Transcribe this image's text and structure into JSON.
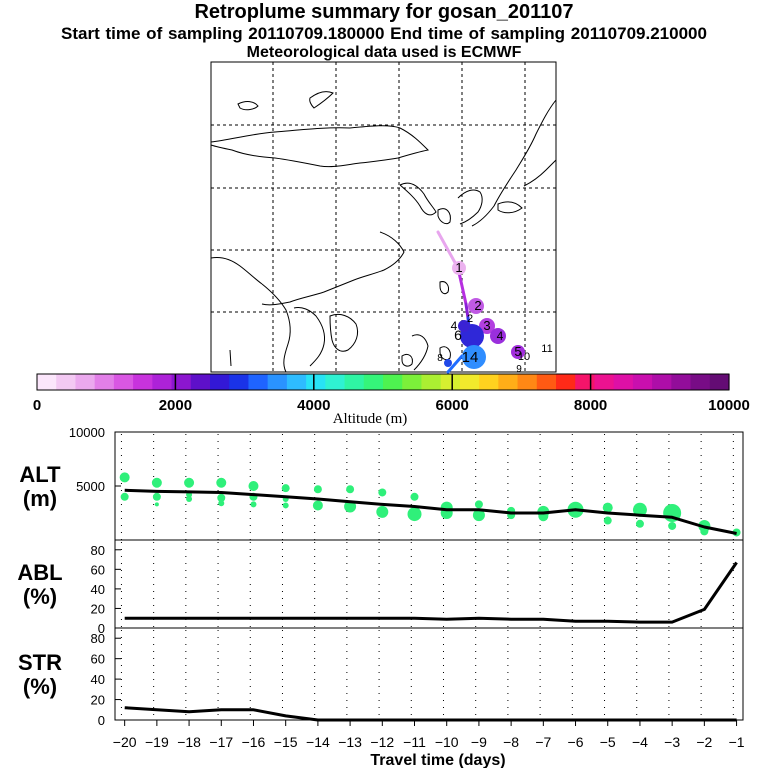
{
  "header": {
    "title": "Retroplume summary for gosan_201107",
    "sampling_line": "Start time of sampling 20110709.180000      End time of sampling 20110709.210000",
    "met_line": "Meteorological data used is ECMWF"
  },
  "map": {
    "trajectory_labels": [
      "1",
      "2",
      "2",
      "3",
      "4",
      "4",
      "5",
      "6",
      "8",
      "9",
      "10",
      "11",
      "14"
    ]
  },
  "colorbar": {
    "tick_labels": [
      "0",
      "2000",
      "4000",
      "6000",
      "8000",
      "10000"
    ],
    "title": "Altitude  (m)",
    "colors": [
      "#fbe6fb",
      "#f3c9f3",
      "#eba9ee",
      "#e27fe8",
      "#d957e3",
      "#c833dd",
      "#ad22d8",
      "#8c16cf",
      "#5e10c9",
      "#3318d6",
      "#1a33e8",
      "#1f64ff",
      "#2a93ff",
      "#2ebcff",
      "#28e3f5",
      "#2ff2d2",
      "#2ff5a4",
      "#35f57a",
      "#4ef350",
      "#7cf03a",
      "#abef32",
      "#d6ef30",
      "#f2ea2c",
      "#ffd21f",
      "#ffae18",
      "#ff8815",
      "#ff5a13",
      "#ff2a18",
      "#f5146a",
      "#ec1290",
      "#de10a6",
      "#c90fae",
      "#ae0ea8",
      "#920d9a",
      "#780c86",
      "#640c74"
    ]
  },
  "chart_data": [
    {
      "type": "line",
      "name": "ALT",
      "ylabel": "ALT\n(m)",
      "x": [
        -20,
        -19,
        -18,
        -17,
        -16,
        -15,
        -14,
        -13,
        -12,
        -11,
        -10,
        -9,
        -8,
        -7,
        -6,
        -5,
        -4,
        -3,
        -2,
        -1
      ],
      "values": [
        4600,
        4500,
        4450,
        4400,
        4200,
        4000,
        3800,
        3550,
        3300,
        3100,
        2800,
        2800,
        2500,
        2500,
        2800,
        2500,
        2300,
        2100,
        1200,
        600
      ],
      "ylim": [
        0,
        10000
      ],
      "yticks": [
        "5000",
        "10000"
      ],
      "scatter": [
        {
          "x": -19.9,
          "y": 5800,
          "s": 5
        },
        {
          "x": -19.9,
          "y": 4000,
          "s": 4
        },
        {
          "x": -18.9,
          "y": 5300,
          "s": 5
        },
        {
          "x": -18.9,
          "y": 4000,
          "s": 4
        },
        {
          "x": -18.9,
          "y": 3300,
          "s": 2
        },
        {
          "x": -17.9,
          "y": 5300,
          "s": 5
        },
        {
          "x": -17.9,
          "y": 4200,
          "s": 3
        },
        {
          "x": -17.9,
          "y": 3800,
          "s": 3
        },
        {
          "x": -16.9,
          "y": 5300,
          "s": 5
        },
        {
          "x": -16.9,
          "y": 3900,
          "s": 4
        },
        {
          "x": -16.9,
          "y": 3400,
          "s": 3
        },
        {
          "x": -15.9,
          "y": 5000,
          "s": 5
        },
        {
          "x": -15.9,
          "y": 4000,
          "s": 4
        },
        {
          "x": -15.9,
          "y": 3300,
          "s": 3
        },
        {
          "x": -14.9,
          "y": 4800,
          "s": 4
        },
        {
          "x": -14.9,
          "y": 3800,
          "s": 3
        },
        {
          "x": -14.9,
          "y": 3200,
          "s": 3
        },
        {
          "x": -13.9,
          "y": 4700,
          "s": 4
        },
        {
          "x": -13.9,
          "y": 3200,
          "s": 5
        },
        {
          "x": -12.9,
          "y": 4700,
          "s": 4
        },
        {
          "x": -12.9,
          "y": 3100,
          "s": 6
        },
        {
          "x": -11.9,
          "y": 4400,
          "s": 4
        },
        {
          "x": -11.9,
          "y": 2600,
          "s": 6
        },
        {
          "x": -10.9,
          "y": 4000,
          "s": 4
        },
        {
          "x": -10.9,
          "y": 2400,
          "s": 7
        },
        {
          "x": -9.9,
          "y": 3000,
          "s": 6
        },
        {
          "x": -9.9,
          "y": 2500,
          "s": 6
        },
        {
          "x": -8.9,
          "y": 3300,
          "s": 4
        },
        {
          "x": -8.9,
          "y": 2300,
          "s": 6
        },
        {
          "x": -7.9,
          "y": 2700,
          "s": 4
        },
        {
          "x": -7.9,
          "y": 2300,
          "s": 4
        },
        {
          "x": -6.9,
          "y": 2600,
          "s": 6
        },
        {
          "x": -6.9,
          "y": 2200,
          "s": 5
        },
        {
          "x": -5.9,
          "y": 2800,
          "s": 8
        },
        {
          "x": -4.9,
          "y": 3000,
          "s": 5
        },
        {
          "x": -4.9,
          "y": 1800,
          "s": 4
        },
        {
          "x": -3.9,
          "y": 2800,
          "s": 7
        },
        {
          "x": -3.9,
          "y": 1500,
          "s": 4
        },
        {
          "x": -2.9,
          "y": 2500,
          "s": 9
        },
        {
          "x": -2.9,
          "y": 1300,
          "s": 4
        },
        {
          "x": -1.9,
          "y": 1300,
          "s": 6
        },
        {
          "x": -1.9,
          "y": 800,
          "s": 4
        },
        {
          "x": -0.9,
          "y": 700,
          "s": 4
        }
      ]
    },
    {
      "type": "line",
      "name": "ABL",
      "ylabel": "ABL\n(%)",
      "x": [
        -20,
        -19,
        -18,
        -17,
        -16,
        -15,
        -14,
        -13,
        -12,
        -11,
        -10,
        -9,
        -8,
        -7,
        -6,
        -5,
        -4,
        -3,
        -2,
        -1
      ],
      "values": [
        10,
        10,
        10,
        10,
        10,
        10,
        10,
        10,
        10,
        10,
        9,
        10,
        9,
        9,
        7,
        7,
        6,
        6,
        19,
        67
      ],
      "ylim": [
        0,
        90
      ],
      "yticks": [
        "0",
        "20",
        "40",
        "60",
        "80"
      ]
    },
    {
      "type": "line",
      "name": "STR",
      "ylabel": "STR\n(%)",
      "x": [
        -20,
        -19,
        -18,
        -17,
        -16,
        -15,
        -14,
        -13,
        -12,
        -11,
        -10,
        -9,
        -8,
        -7,
        -6,
        -5,
        -4,
        -3,
        -2,
        -1
      ],
      "values": [
        12,
        10,
        8,
        10,
        10,
        4,
        0,
        0,
        0,
        0,
        0,
        0,
        0,
        0,
        0,
        0,
        0,
        0,
        0,
        0
      ],
      "ylim": [
        0,
        90
      ],
      "yticks": [
        "0",
        "20",
        "40",
        "60",
        "80"
      ],
      "xlabel": "Travel time (days)",
      "xticks": [
        "−20",
        "−19",
        "−18",
        "−17",
        "−16",
        "−15",
        "−14",
        "−13",
        "−12",
        "−11",
        "−10",
        "−9",
        "−8",
        "−7",
        "−6",
        "−5",
        "−4",
        "−3",
        "−2",
        "−1"
      ]
    }
  ]
}
